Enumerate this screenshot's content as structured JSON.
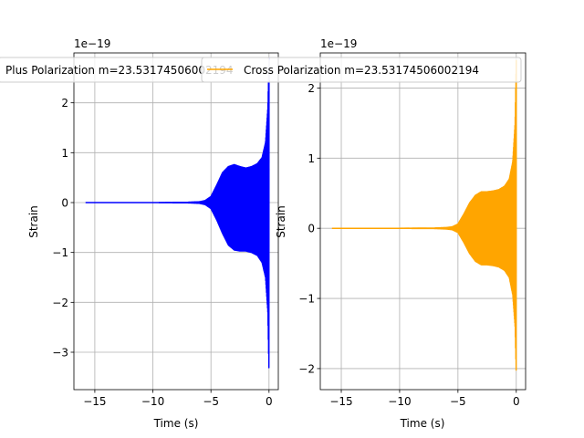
{
  "chart_data": [
    {
      "type": "line",
      "xlabel": "Time (s)",
      "ylabel": "Strain",
      "y_offset_text": "1e−19",
      "xlim": [
        -16.8,
        0.8
      ],
      "ylim": [
        -3.75,
        3.0
      ],
      "x_ticks": [
        -15,
        -10,
        -5,
        0
      ],
      "x_tick_labels": [
        "−15",
        "−10",
        "−5",
        "0"
      ],
      "y_ticks": [
        -3,
        -2,
        -1,
        0,
        1,
        2
      ],
      "y_tick_labels": [
        "−3",
        "−2",
        "−1",
        "0",
        "1",
        "2"
      ],
      "grid": true,
      "legend_position": "top",
      "series": [
        {
          "name": "Plus Polarization m=23.53174506002194",
          "color": "#0000ff",
          "envelope": {
            "t": [
              -15.8,
              -10,
              -7,
              -6,
              -5.5,
              -5,
              -4.5,
              -4,
              -3.5,
              -3,
              -2.5,
              -2,
              -1.5,
              -1,
              -0.6,
              -0.3,
              -0.1,
              0
            ],
            "upper": [
              0,
              0,
              0.005,
              0.015,
              0.04,
              0.12,
              0.35,
              0.6,
              0.72,
              0.76,
              0.72,
              0.69,
              0.72,
              0.78,
              0.9,
              1.2,
              1.9,
              2.9
            ],
            "lower": [
              0,
              0,
              -0.005,
              -0.015,
              -0.04,
              -0.12,
              -0.35,
              -0.62,
              -0.85,
              -0.95,
              -0.97,
              -0.97,
              -1.0,
              -1.06,
              -1.2,
              -1.5,
              -2.2,
              -3.45
            ]
          }
        }
      ]
    },
    {
      "type": "line",
      "xlabel": "Time (s)",
      "ylabel": "Strain",
      "y_offset_text": "1e−19",
      "xlim": [
        -16.8,
        0.8
      ],
      "ylim": [
        -2.3,
        2.5
      ],
      "x_ticks": [
        -15,
        -10,
        -5,
        0
      ],
      "x_tick_labels": [
        "−15",
        "−10",
        "−5",
        "0"
      ],
      "y_ticks": [
        -2,
        -1,
        0,
        1,
        2
      ],
      "y_tick_labels": [
        "−2",
        "−1",
        "0",
        "1",
        "2"
      ],
      "grid": true,
      "legend_position": "top",
      "series": [
        {
          "name": "Cross Polarization m=23.53174506002194",
          "color": "#ffa500",
          "envelope": {
            "t": [
              -15.8,
              -10,
              -7,
              -6,
              -5.5,
              -5,
              -4.5,
              -4,
              -3.5,
              -3,
              -2.5,
              -2,
              -1.5,
              -1,
              -0.6,
              -0.3,
              -0.1,
              0
            ],
            "upper": [
              0,
              0,
              0.003,
              0.01,
              0.02,
              0.06,
              0.2,
              0.36,
              0.47,
              0.52,
              0.52,
              0.53,
              0.55,
              0.6,
              0.7,
              0.95,
              1.5,
              2.4
            ],
            "lower": [
              0,
              0,
              -0.003,
              -0.01,
              -0.02,
              -0.06,
              -0.2,
              -0.36,
              -0.47,
              -0.52,
              -0.52,
              -0.53,
              -0.55,
              -0.6,
              -0.7,
              -0.95,
              -1.4,
              -2.1
            ]
          }
        }
      ]
    }
  ]
}
